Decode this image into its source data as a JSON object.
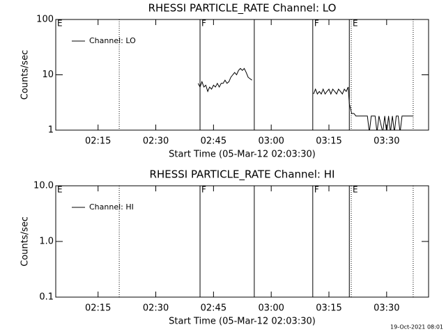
{
  "chart_data": [
    {
      "type": "line",
      "title": "RHESSI PARTICLE_RATE Channel: LO",
      "xlabel": "Start Time (05-Mar-12 02:03:30)",
      "ylabel": "Counts/sec",
      "log_y": true,
      "xlim": [
        124,
        220.9
      ],
      "ylim": [
        1,
        100
      ],
      "yticks": [
        1,
        10,
        100
      ],
      "xticks": [
        {
          "value": 135,
          "label": "02:15"
        },
        {
          "value": 150,
          "label": "02:30"
        },
        {
          "value": 165,
          "label": "02:45"
        },
        {
          "value": 180,
          "label": "03:00"
        },
        {
          "value": 195,
          "label": "03:15"
        },
        {
          "value": 210,
          "label": "03:30"
        }
      ],
      "legend": "top-left",
      "x": [
        161.0,
        161.5,
        162.0,
        162.5,
        163.0,
        163.5,
        164.0,
        164.5,
        165.0,
        165.5,
        166.0,
        166.5,
        167.0,
        167.5,
        168.0,
        168.5,
        169.0,
        169.5,
        170.0,
        170.5,
        171.0,
        171.5,
        172.0,
        172.5,
        173.0,
        173.5,
        174.0,
        174.5,
        175.0,
        183.0,
        191.0,
        191.5,
        192.0,
        192.5,
        193.0,
        193.5,
        194.0,
        194.5,
        195.0,
        195.5,
        196.0,
        196.5,
        197.0,
        197.5,
        198.0,
        198.5,
        199.0,
        199.5,
        200.0,
        200.3,
        200.6,
        200.9,
        201.5,
        202,
        203,
        204,
        205,
        205.5,
        206,
        207,
        207.5,
        208,
        209,
        209.5,
        210,
        210.5,
        211,
        211.5,
        212,
        212.5,
        213,
        213.5,
        214,
        216.9
      ],
      "series": [
        {
          "name": "Channel: LO",
          "color": "#000000",
          "values": [
            7,
            6,
            7.5,
            6,
            6.5,
            5,
            6,
            5.5,
            6.5,
            6,
            7,
            6,
            7,
            7,
            8,
            7,
            7.5,
            9,
            10,
            11,
            10,
            12,
            13,
            12,
            13,
            11,
            9,
            8.5,
            8,
            null,
            4.5,
            5.5,
            4.5,
            5,
            4.5,
            5.5,
            4.5,
            5,
            5.5,
            4.5,
            5.5,
            5,
            4.5,
            5.5,
            5,
            4.5,
            5.5,
            5,
            6,
            3,
            2.5,
            2,
            2,
            1.8,
            1.8,
            1.8,
            1.8,
            0.9,
            1.8,
            1.8,
            0.9,
            1.8,
            0.9,
            1.8,
            0.9,
            1.8,
            0.9,
            1.8,
            0.9,
            1.8,
            1.8,
            0.9,
            1.8,
            1.8
          ]
        }
      ],
      "vlines": [
        {
          "x": 140.5,
          "style": "dotted"
        },
        {
          "x": 161.5,
          "style": "solid"
        },
        {
          "x": 175.6,
          "style": "solid"
        },
        {
          "x": 190.8,
          "style": "solid"
        },
        {
          "x": 200.3,
          "style": "solid"
        },
        {
          "x": 200.8,
          "style": "dotted"
        },
        {
          "x": 216.9,
          "style": "dotted"
        }
      ],
      "flags": [
        {
          "x": 124,
          "label": "E"
        },
        {
          "x": 161.5,
          "label": "F"
        },
        {
          "x": 190.8,
          "label": "F"
        },
        {
          "x": 200.8,
          "label": "E"
        }
      ]
    },
    {
      "type": "line",
      "title": "RHESSI PARTICLE_RATE Channel: HI",
      "xlabel": "Start Time (05-Mar-12 02:03:30)",
      "ylabel": "Counts/sec",
      "log_y": true,
      "xlim": [
        124,
        220.9
      ],
      "ylim": [
        0.1,
        10
      ],
      "yticks": [
        0.1,
        {
          "value": 1,
          "label": "1.0"
        },
        {
          "value": 10,
          "label": "10.0"
        }
      ],
      "xticks": [
        {
          "value": 135,
          "label": "02:15"
        },
        {
          "value": 150,
          "label": "02:30"
        },
        {
          "value": 165,
          "label": "02:45"
        },
        {
          "value": 180,
          "label": "03:00"
        },
        {
          "value": 195,
          "label": "03:15"
        },
        {
          "value": 210,
          "label": "03:30"
        }
      ],
      "legend": "top-left",
      "x": [],
      "series": [
        {
          "name": "Channel: HI",
          "color": "#000000",
          "values": []
        }
      ],
      "vlines": [
        {
          "x": 140.5,
          "style": "dotted"
        },
        {
          "x": 161.5,
          "style": "solid"
        },
        {
          "x": 175.6,
          "style": "solid"
        },
        {
          "x": 190.8,
          "style": "solid"
        },
        {
          "x": 200.3,
          "style": "solid"
        },
        {
          "x": 200.8,
          "style": "dotted"
        },
        {
          "x": 216.9,
          "style": "dotted"
        }
      ],
      "flags": [
        {
          "x": 124,
          "label": "E"
        },
        {
          "x": 161.5,
          "label": "F"
        },
        {
          "x": 190.8,
          "label": "F"
        },
        {
          "x": 200.8,
          "label": "E"
        }
      ]
    }
  ],
  "footer": "19-Oct-2021 08:01"
}
